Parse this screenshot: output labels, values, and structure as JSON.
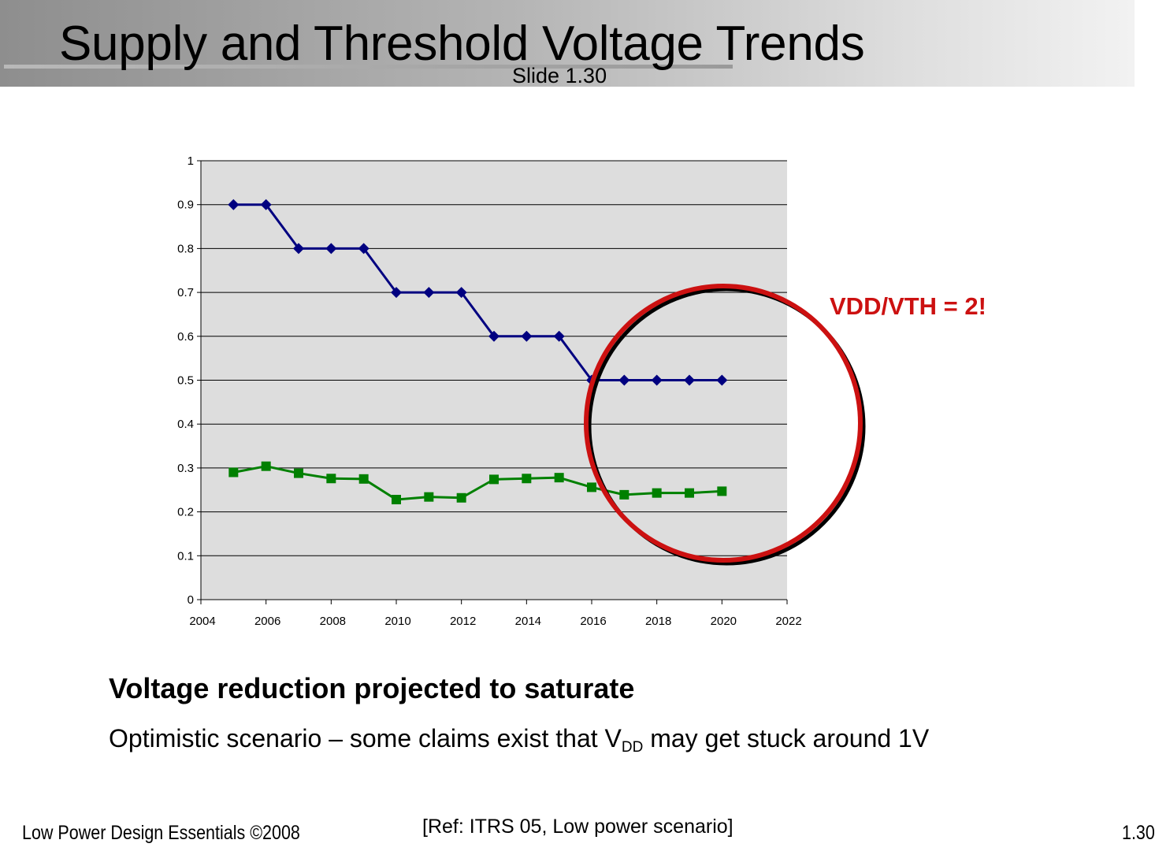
{
  "slide": {
    "title": "Supply and Threshold Voltage Trends",
    "slide_number": "Slide 1.30"
  },
  "chart_data": {
    "type": "line",
    "title": "",
    "xlabel": "",
    "ylabel": "",
    "xlim": [
      2004,
      2022
    ],
    "ylim": [
      0,
      1
    ],
    "x_ticks": [
      2004,
      2006,
      2008,
      2010,
      2012,
      2014,
      2016,
      2018,
      2020,
      2022
    ],
    "y_ticks": [
      0,
      0.1,
      0.2,
      0.3,
      0.4,
      0.5,
      0.6,
      0.7,
      0.8,
      0.9,
      1
    ],
    "grid": "horizontal",
    "legend": "none",
    "plot_background": "#dddddd",
    "x": [
      2005,
      2006,
      2007,
      2008,
      2009,
      2010,
      2011,
      2012,
      2013,
      2014,
      2015,
      2016,
      2017,
      2018,
      2019,
      2020
    ],
    "series": [
      {
        "marker": "diamond",
        "color": "#000080",
        "values": [
          0.9,
          0.9,
          0.8,
          0.8,
          0.8,
          0.7,
          0.7,
          0.7,
          0.6,
          0.6,
          0.6,
          0.5,
          0.5,
          0.5,
          0.5,
          0.5
        ]
      },
      {
        "marker": "square",
        "color": "#008000",
        "values": [
          0.29,
          0.304,
          0.288,
          0.276,
          0.275,
          0.228,
          0.234,
          0.232,
          0.274,
          0.276,
          0.278,
          0.256,
          0.239,
          0.243,
          0.243,
          0.247
        ]
      }
    ],
    "annotation": {
      "text": "VDD/VTH = 2!",
      "color": "#cc1111",
      "shape": "circle",
      "circle_color": "#cc1111"
    }
  },
  "body": {
    "headline": "Voltage reduction projected to saturate",
    "subline_before": "Optimistic scenario – some claims exist that V",
    "subline_sub": "DD",
    "subline_after": " may get stuck around 1V"
  },
  "footer": {
    "left": "Low Power Design Essentials ©2008",
    "reference": "[Ref: ITRS 05, Low power scenario]",
    "page": "1.30"
  }
}
